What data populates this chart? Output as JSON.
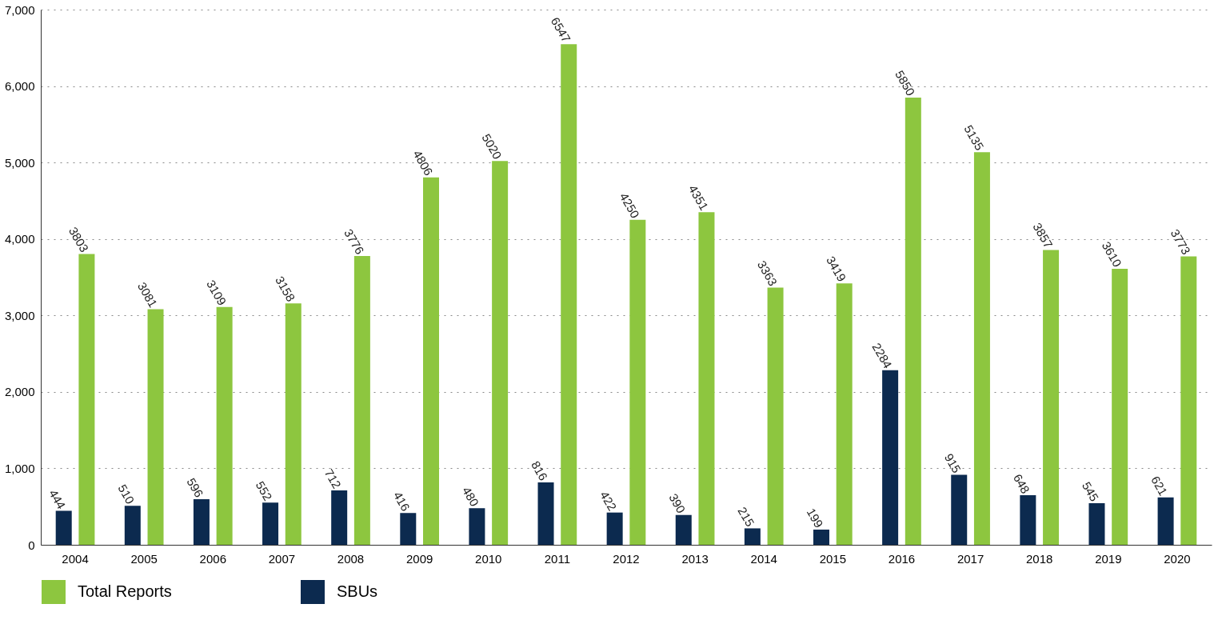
{
  "chart_data": {
    "type": "bar",
    "categories": [
      "2004",
      "2005",
      "2006",
      "2007",
      "2008",
      "2009",
      "2010",
      "2011",
      "2012",
      "2013",
      "2014",
      "2015",
      "2016",
      "2017",
      "2018",
      "2019",
      "2020"
    ],
    "series": [
      {
        "name": "Total Reports",
        "color": "#8dc63f",
        "values": [
          3803,
          3081,
          3109,
          3158,
          3776,
          4806,
          5020,
          6547,
          4250,
          4351,
          3363,
          3419,
          5850,
          5135,
          3857,
          3610,
          3773
        ]
      },
      {
        "name": "SBUs",
        "color": "#0c2a4f",
        "values": [
          444,
          510,
          596,
          552,
          712,
          416,
          480,
          816,
          422,
          390,
          215,
          199,
          2284,
          915,
          648,
          545,
          621
        ]
      }
    ],
    "ylim": [
      0,
      7000
    ],
    "yticks": [
      0,
      {
        "value": 1000,
        "label": "1,000"
      },
      {
        "value": 2000,
        "label": "2,000"
      },
      {
        "value": 3000,
        "label": "3,000"
      },
      {
        "value": 4000,
        "label": "4,000"
      },
      {
        "value": 5000,
        "label": "5,000"
      },
      {
        "value": 6000,
        "label": "6,000"
      },
      {
        "value": 7000,
        "label": "7,000"
      }
    ],
    "grid": "y",
    "legend": "bottom",
    "data_labels": true
  }
}
